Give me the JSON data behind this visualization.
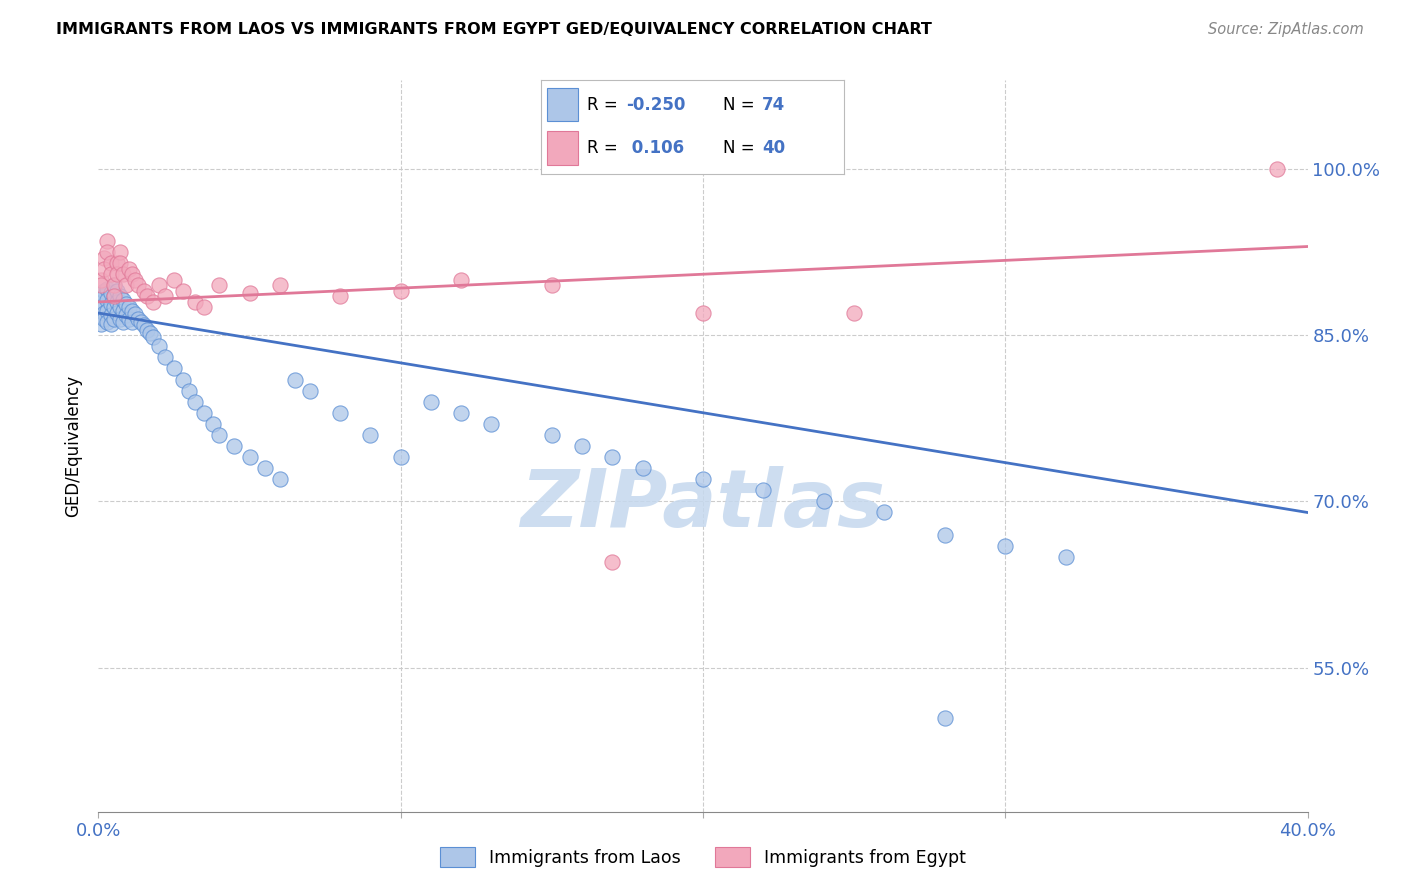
{
  "title": "IMMIGRANTS FROM LAOS VS IMMIGRANTS FROM EGYPT GED/EQUIVALENCY CORRELATION CHART",
  "source": "Source: ZipAtlas.com",
  "ylabel": "GED/Equivalency",
  "xlim": [
    0.0,
    0.4
  ],
  "ylim": [
    0.42,
    1.08
  ],
  "yticks": [
    0.55,
    0.7,
    0.85,
    1.0
  ],
  "ytick_labels": [
    "55.0%",
    "70.0%",
    "85.0%",
    "100.0%"
  ],
  "xticks": [
    0.0,
    0.1,
    0.2,
    0.3,
    0.4
  ],
  "xtick_labels": [
    "0.0%",
    "",
    "",
    "",
    "40.0%"
  ],
  "legend_laos_R": "-0.250",
  "legend_laos_N": "74",
  "legend_egypt_R": "0.106",
  "legend_egypt_N": "40",
  "laos_color": "#adc6e8",
  "egypt_color": "#f2a8bc",
  "laos_edge_color": "#5b8fd4",
  "egypt_edge_color": "#e07898",
  "laos_line_color": "#4472c4",
  "egypt_line_color": "#e07898",
  "background_color": "#ffffff",
  "grid_color": "#cccccc",
  "tick_color": "#4472c4",
  "watermark_color": "#c5d8ee",
  "laos_trend_x0": 0.0,
  "laos_trend_y0": 0.87,
  "laos_trend_x1": 0.4,
  "laos_trend_y1": 0.69,
  "egypt_trend_x0": 0.0,
  "egypt_trend_y0": 0.88,
  "egypt_trend_x1": 0.4,
  "egypt_trend_y1": 0.93,
  "laos_x": [
    0.001,
    0.001,
    0.001,
    0.002,
    0.002,
    0.002,
    0.002,
    0.003,
    0.003,
    0.003,
    0.003,
    0.004,
    0.004,
    0.004,
    0.004,
    0.005,
    0.005,
    0.005,
    0.005,
    0.006,
    0.006,
    0.006,
    0.007,
    0.007,
    0.007,
    0.008,
    0.008,
    0.008,
    0.009,
    0.009,
    0.01,
    0.01,
    0.011,
    0.011,
    0.012,
    0.013,
    0.014,
    0.015,
    0.016,
    0.017,
    0.018,
    0.02,
    0.022,
    0.025,
    0.028,
    0.03,
    0.032,
    0.035,
    0.038,
    0.04,
    0.045,
    0.05,
    0.055,
    0.06,
    0.065,
    0.07,
    0.08,
    0.09,
    0.1,
    0.11,
    0.12,
    0.13,
    0.15,
    0.16,
    0.17,
    0.18,
    0.2,
    0.22,
    0.24,
    0.26,
    0.28,
    0.3,
    0.32,
    0.28
  ],
  "laos_y": [
    0.88,
    0.875,
    0.86,
    0.89,
    0.885,
    0.87,
    0.865,
    0.892,
    0.882,
    0.872,
    0.862,
    0.888,
    0.878,
    0.868,
    0.86,
    0.895,
    0.885,
    0.875,
    0.865,
    0.89,
    0.88,
    0.87,
    0.885,
    0.875,
    0.865,
    0.882,
    0.872,
    0.862,
    0.878,
    0.868,
    0.875,
    0.865,
    0.872,
    0.862,
    0.869,
    0.865,
    0.862,
    0.859,
    0.855,
    0.852,
    0.848,
    0.84,
    0.83,
    0.82,
    0.81,
    0.8,
    0.79,
    0.78,
    0.77,
    0.76,
    0.75,
    0.74,
    0.73,
    0.72,
    0.81,
    0.8,
    0.78,
    0.76,
    0.74,
    0.79,
    0.78,
    0.77,
    0.76,
    0.75,
    0.74,
    0.73,
    0.72,
    0.71,
    0.7,
    0.69,
    0.67,
    0.66,
    0.65,
    0.505
  ],
  "egypt_x": [
    0.001,
    0.001,
    0.002,
    0.002,
    0.003,
    0.003,
    0.004,
    0.004,
    0.005,
    0.005,
    0.006,
    0.006,
    0.007,
    0.007,
    0.008,
    0.009,
    0.01,
    0.011,
    0.012,
    0.013,
    0.015,
    0.016,
    0.018,
    0.02,
    0.022,
    0.025,
    0.028,
    0.032,
    0.035,
    0.04,
    0.05,
    0.06,
    0.08,
    0.1,
    0.12,
    0.15,
    0.17,
    0.2,
    0.25,
    0.39
  ],
  "egypt_y": [
    0.9,
    0.895,
    0.92,
    0.91,
    0.935,
    0.925,
    0.915,
    0.905,
    0.895,
    0.885,
    0.915,
    0.905,
    0.925,
    0.915,
    0.905,
    0.895,
    0.91,
    0.905,
    0.9,
    0.895,
    0.89,
    0.885,
    0.88,
    0.895,
    0.885,
    0.9,
    0.89,
    0.88,
    0.875,
    0.895,
    0.888,
    0.895,
    0.885,
    0.89,
    0.9,
    0.895,
    0.645,
    0.87,
    0.87,
    1.0
  ]
}
